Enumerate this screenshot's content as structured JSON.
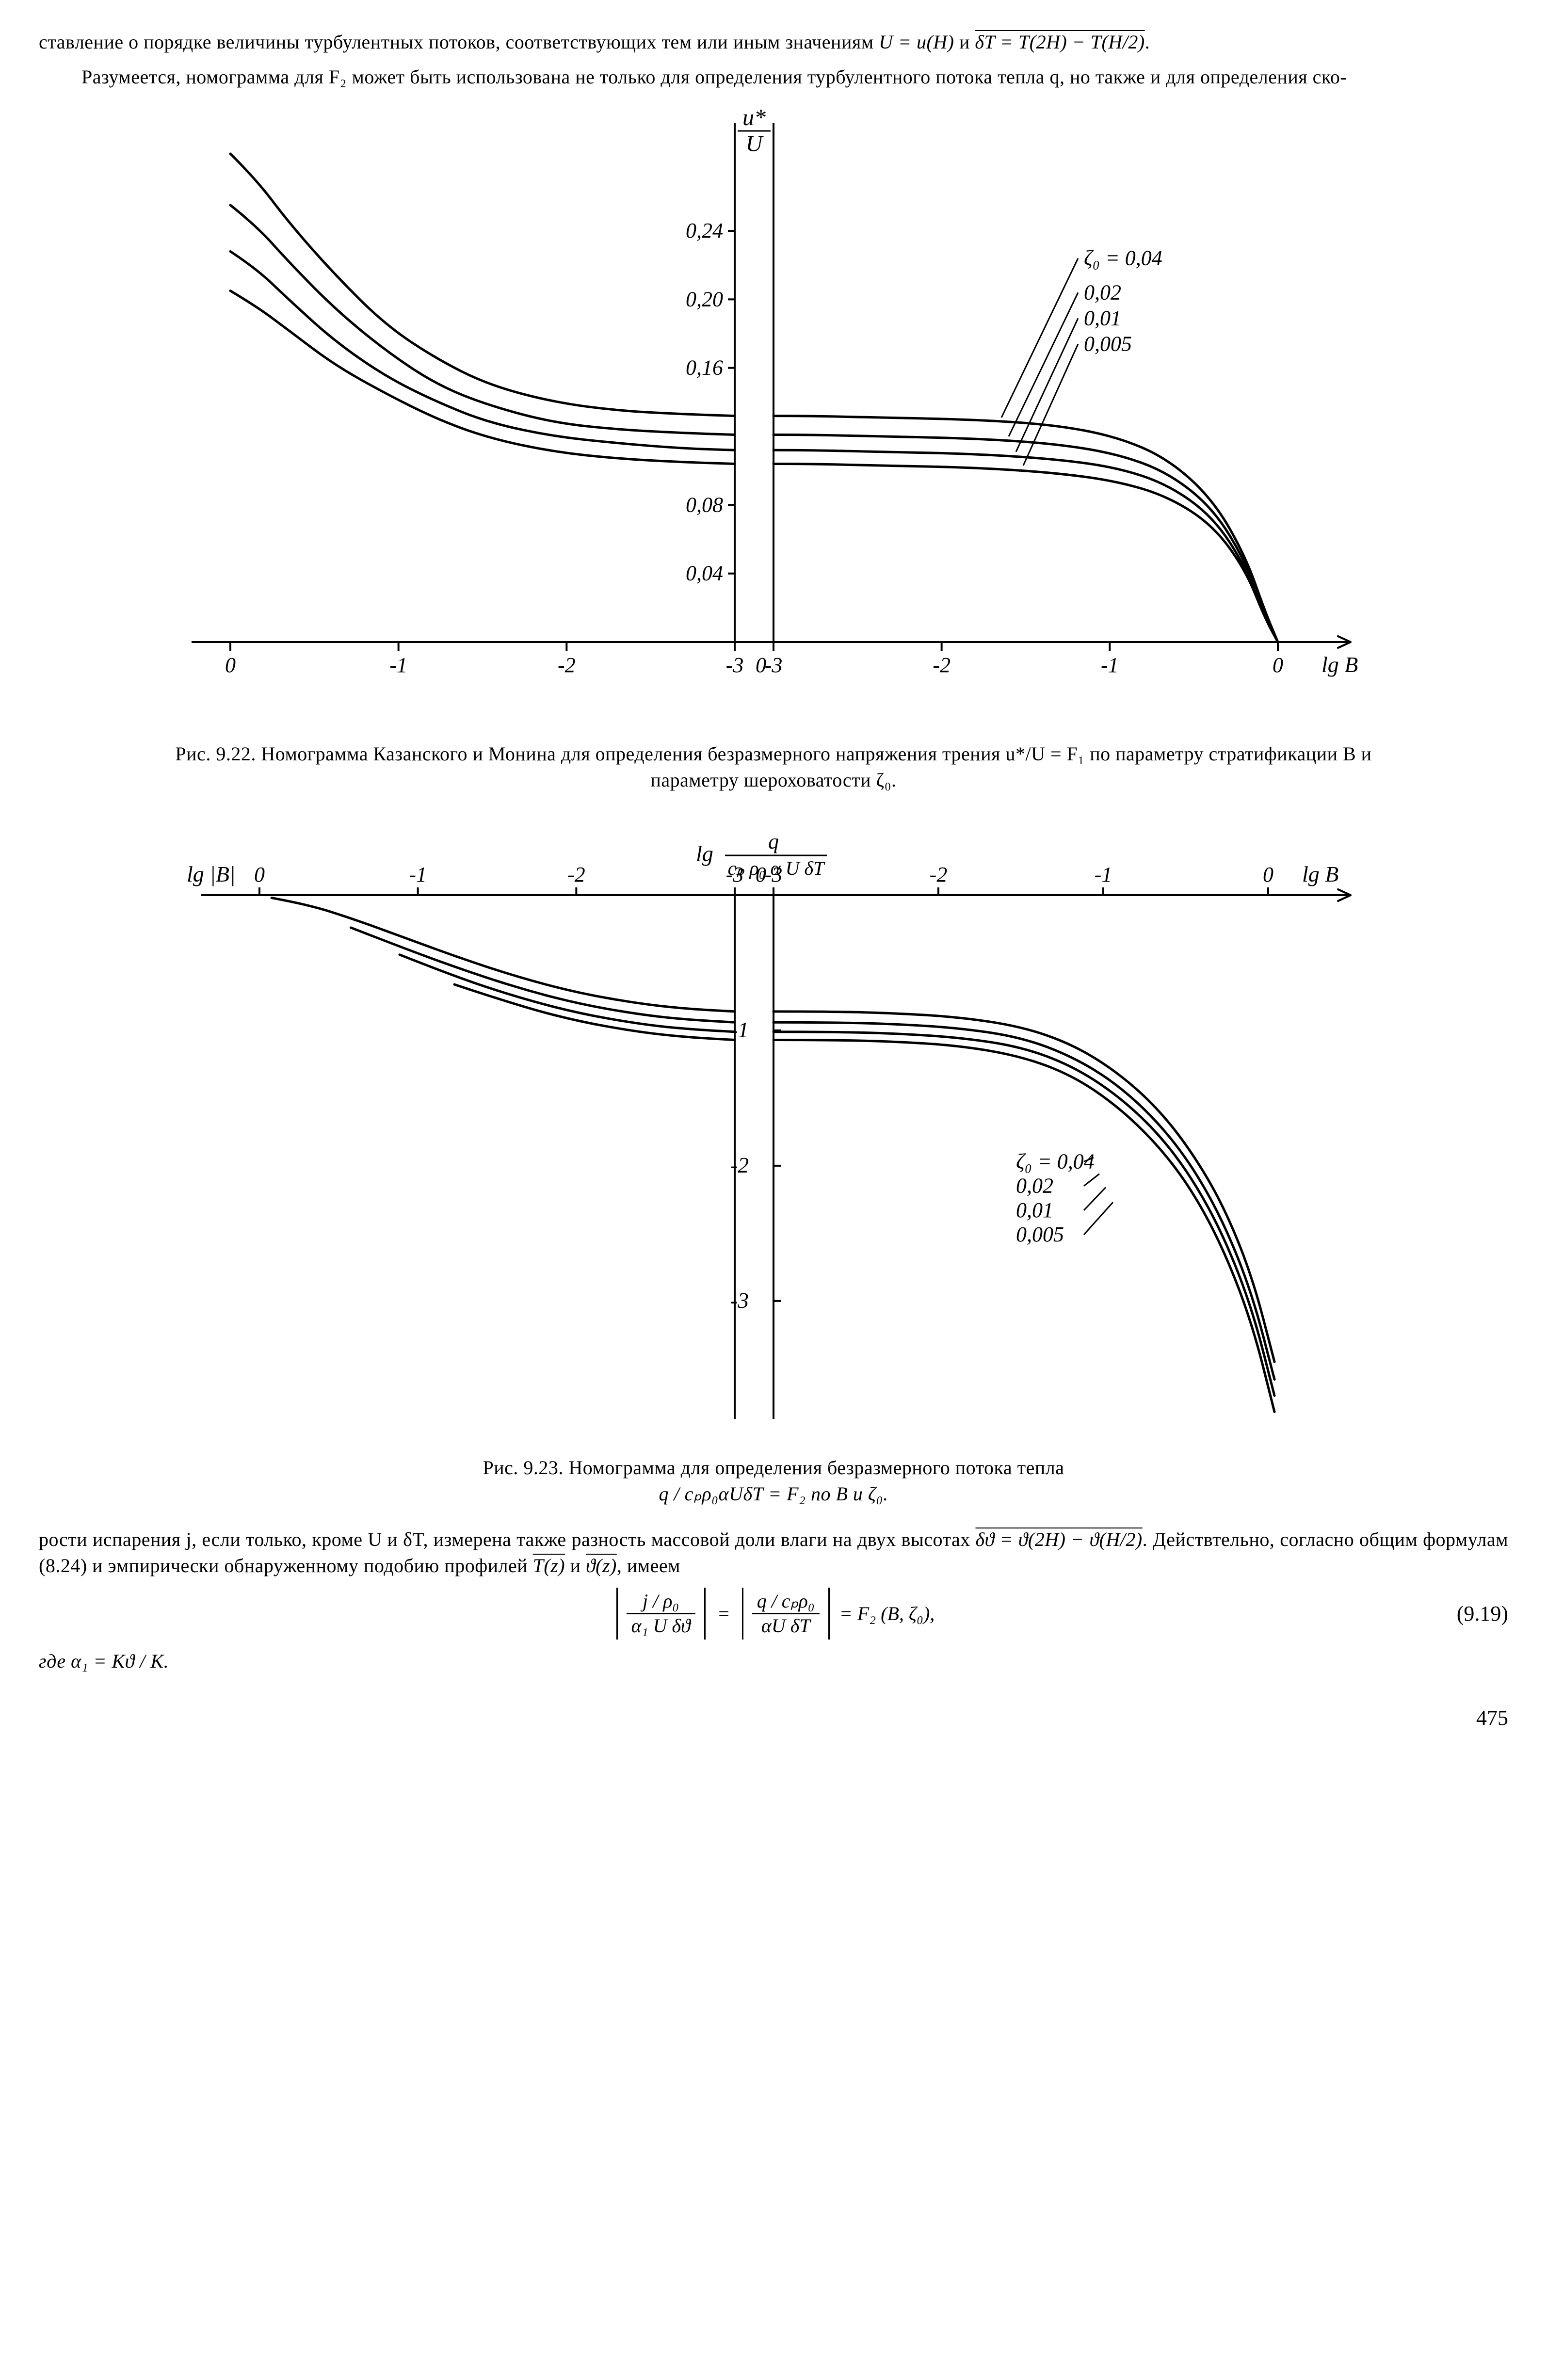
{
  "para1_a": "ставление о порядке величины турбулентных потоков, соответствующих тем или иным значениям ",
  "para1_b": " и ",
  "para1_c": ".",
  "eq_inline_1a": "U = u(H)",
  "eq_inline_1b": "δT = T(2H) − T(H/2)",
  "para2": "Разумеется, номограмма для F₂ может быть использована не только для определения турбулентного потока тепла q, но также и для определения ско-",
  "fig922": {
    "ylabel_top": "u*",
    "ylabel_bot": "U",
    "yticks": [
      "0,24",
      "0,20",
      "0,16",
      "0,08",
      "0,04"
    ],
    "xticks_left": [
      "0",
      "-1",
      "-2",
      "-3"
    ],
    "xticks_right": [
      "0",
      "-3",
      "-2",
      "-1",
      "0"
    ],
    "xr_right_label": "lg B",
    "zeta_lead": "ζ₀ = 0,04",
    "zeta_vals": [
      "0,02",
      "0,01",
      "0,005"
    ],
    "curves_left": {
      "c004": [
        [
          0,
          0.285
        ],
        [
          40,
          0.27
        ],
        [
          90,
          0.245
        ],
        [
          160,
          0.215
        ],
        [
          240,
          0.185
        ],
        [
          320,
          0.165
        ],
        [
          400,
          0.15
        ],
        [
          500,
          0.14
        ],
        [
          600,
          0.135
        ],
        [
          700,
          0.133
        ],
        [
          780,
          0.132
        ]
      ],
      "c002": [
        [
          0,
          0.255
        ],
        [
          40,
          0.243
        ],
        [
          90,
          0.222
        ],
        [
          160,
          0.195
        ],
        [
          240,
          0.17
        ],
        [
          320,
          0.15
        ],
        [
          400,
          0.138
        ],
        [
          500,
          0.128
        ],
        [
          600,
          0.124
        ],
        [
          700,
          0.122
        ],
        [
          780,
          0.121
        ]
      ],
      "c001": [
        [
          0,
          0.228
        ],
        [
          40,
          0.218
        ],
        [
          90,
          0.2
        ],
        [
          160,
          0.176
        ],
        [
          240,
          0.155
        ],
        [
          320,
          0.14
        ],
        [
          400,
          0.128
        ],
        [
          500,
          0.12
        ],
        [
          600,
          0.116
        ],
        [
          700,
          0.113
        ],
        [
          780,
          0.112
        ]
      ],
      "c0005": [
        [
          0,
          0.205
        ],
        [
          40,
          0.196
        ],
        [
          90,
          0.182
        ],
        [
          160,
          0.162
        ],
        [
          240,
          0.145
        ],
        [
          320,
          0.13
        ],
        [
          400,
          0.119
        ],
        [
          500,
          0.111
        ],
        [
          600,
          0.107
        ],
        [
          700,
          0.105
        ],
        [
          780,
          0.104
        ]
      ]
    },
    "curves_right": {
      "c004": [
        [
          0,
          0.132
        ],
        [
          60,
          0.132
        ],
        [
          160,
          0.131
        ],
        [
          300,
          0.13
        ],
        [
          430,
          0.127
        ],
        [
          530,
          0.12
        ],
        [
          610,
          0.107
        ],
        [
          680,
          0.083
        ],
        [
          730,
          0.05
        ],
        [
          760,
          0.018
        ],
        [
          780,
          0.0
        ]
      ],
      "c002": [
        [
          0,
          0.121
        ],
        [
          60,
          0.121
        ],
        [
          160,
          0.12
        ],
        [
          300,
          0.119
        ],
        [
          430,
          0.116
        ],
        [
          530,
          0.11
        ],
        [
          610,
          0.099
        ],
        [
          680,
          0.078
        ],
        [
          730,
          0.047
        ],
        [
          760,
          0.016
        ],
        [
          780,
          0.0
        ]
      ],
      "c001": [
        [
          0,
          0.112
        ],
        [
          60,
          0.112
        ],
        [
          160,
          0.111
        ],
        [
          300,
          0.11
        ],
        [
          430,
          0.107
        ],
        [
          530,
          0.102
        ],
        [
          610,
          0.092
        ],
        [
          680,
          0.073
        ],
        [
          730,
          0.044
        ],
        [
          760,
          0.015
        ],
        [
          780,
          0.0
        ]
      ],
      "c0005": [
        [
          0,
          0.104
        ],
        [
          60,
          0.104
        ],
        [
          160,
          0.103
        ],
        [
          300,
          0.102
        ],
        [
          430,
          0.099
        ],
        [
          530,
          0.094
        ],
        [
          610,
          0.085
        ],
        [
          680,
          0.068
        ],
        [
          730,
          0.042
        ],
        [
          760,
          0.014
        ],
        [
          780,
          0.0
        ]
      ]
    },
    "stroke": "#000000",
    "stroke_width": 5
  },
  "caption922": "Рис. 9.22. Номограмма Казанского и Монина для определения безразмерного напряжения трения u*/U = F₁ по параметру стратификации B и параметру шероховатости ζ₀.",
  "fig923": {
    "ylabel_lead": "lg",
    "ylabel_num": "q",
    "ylabel_den": "cₚ ρ₀ α U δT",
    "xl_label": "lg |B|",
    "xr_label": "lg B",
    "xticks_left": [
      "0",
      "-1",
      "-2",
      "-3"
    ],
    "xticks_right": [
      "0",
      "-3",
      "-2",
      "-1",
      "0"
    ],
    "yticks": [
      "-1",
      "-2",
      "-3"
    ],
    "zeta_lead": "ζ₀ = 0,04",
    "zeta_vals": [
      "0,02",
      "0,01",
      "0,005"
    ],
    "curves_left": {
      "c004": [
        [
          20,
          -0.02
        ],
        [
          80,
          -0.07
        ],
        [
          150,
          -0.17
        ],
        [
          230,
          -0.3
        ],
        [
          320,
          -0.45
        ],
        [
          420,
          -0.6
        ],
        [
          520,
          -0.72
        ],
        [
          620,
          -0.8
        ],
        [
          700,
          -0.84
        ],
        [
          780,
          -0.86
        ]
      ],
      "c002": [
        [
          150,
          -0.24
        ],
        [
          230,
          -0.38
        ],
        [
          320,
          -0.53
        ],
        [
          420,
          -0.68
        ],
        [
          520,
          -0.8
        ],
        [
          620,
          -0.88
        ],
        [
          700,
          -0.92
        ],
        [
          780,
          -0.94
        ]
      ],
      "c001": [
        [
          230,
          -0.44
        ],
        [
          320,
          -0.6
        ],
        [
          420,
          -0.75
        ],
        [
          520,
          -0.87
        ],
        [
          620,
          -0.95
        ],
        [
          700,
          -0.99
        ],
        [
          780,
          -1.01
        ]
      ],
      "c0005": [
        [
          320,
          -0.66
        ],
        [
          420,
          -0.81
        ],
        [
          520,
          -0.93
        ],
        [
          620,
          -1.01
        ],
        [
          700,
          -1.05
        ],
        [
          780,
          -1.07
        ]
      ]
    },
    "curves_right": {
      "c004": [
        [
          0,
          -0.86
        ],
        [
          80,
          -0.86
        ],
        [
          180,
          -0.87
        ],
        [
          290,
          -0.9
        ],
        [
          390,
          -0.97
        ],
        [
          470,
          -1.1
        ],
        [
          540,
          -1.3
        ],
        [
          605,
          -1.57
        ],
        [
          660,
          -1.9
        ],
        [
          710,
          -2.3
        ],
        [
          755,
          -2.82
        ],
        [
          790,
          -3.45
        ]
      ],
      "c002": [
        [
          0,
          -0.94
        ],
        [
          80,
          -0.94
        ],
        [
          180,
          -0.95
        ],
        [
          290,
          -0.98
        ],
        [
          390,
          -1.05
        ],
        [
          470,
          -1.19
        ],
        [
          540,
          -1.39
        ],
        [
          605,
          -1.67
        ],
        [
          660,
          -2.0
        ],
        [
          710,
          -2.42
        ],
        [
          755,
          -2.95
        ],
        [
          790,
          -3.58
        ]
      ],
      "c001": [
        [
          0,
          -1.01
        ],
        [
          80,
          -1.01
        ],
        [
          180,
          -1.02
        ],
        [
          290,
          -1.05
        ],
        [
          390,
          -1.12
        ],
        [
          470,
          -1.26
        ],
        [
          540,
          -1.47
        ],
        [
          605,
          -1.75
        ],
        [
          660,
          -2.09
        ],
        [
          710,
          -2.52
        ],
        [
          755,
          -3.06
        ],
        [
          790,
          -3.7
        ]
      ],
      "c0005": [
        [
          0,
          -1.07
        ],
        [
          80,
          -1.07
        ],
        [
          180,
          -1.08
        ],
        [
          290,
          -1.11
        ],
        [
          390,
          -1.19
        ],
        [
          470,
          -1.33
        ],
        [
          540,
          -1.55
        ],
        [
          605,
          -1.84
        ],
        [
          660,
          -2.18
        ],
        [
          710,
          -2.62
        ],
        [
          755,
          -3.17
        ],
        [
          790,
          -3.82
        ]
      ]
    },
    "stroke": "#000000",
    "stroke_width": 5
  },
  "caption923_a": "Рис. 9.23. Номограмма для определения безразмерного потока тепла ",
  "caption923_b": "q / cₚρ₀αUδT = F₂ по B и ζ₀.",
  "para3_a": "рости испарения j, если только, кроме U и δT, измерена также разность массовой доли влаги на двух высотах ",
  "para3_mid": "δϑ = ϑ(2H) − ϑ(H/2)",
  "para3_b": ". Действтельно, согласно общим формулам (8.24) и эмпирически обнаруженному подобию профилей ",
  "para3_c": " и ",
  "para3_d": ", имеем",
  "ov_T": "T(z)",
  "ov_th": "ϑ(z)",
  "eq919": {
    "f1_num": "j / ρ₀",
    "f1_den": "α₁ U δϑ",
    "f2_num": "q / cₚρ₀",
    "f2_den": "αU δT",
    "rhs": " = F₂ (B, ζ₀),",
    "num": "(9.19)"
  },
  "where": "где α₁ = Kϑ / K.",
  "pagenum": "475"
}
